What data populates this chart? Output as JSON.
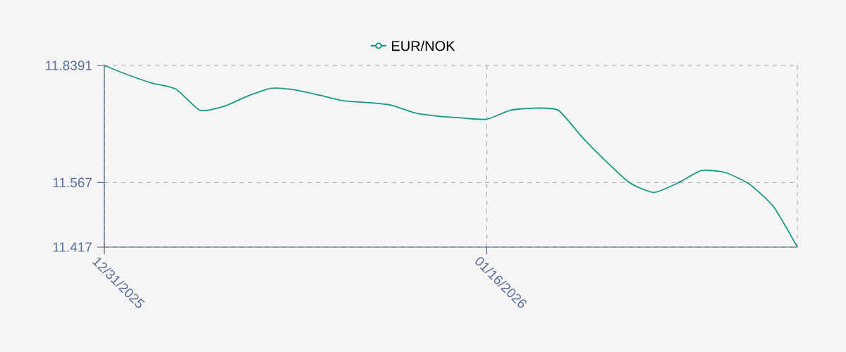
{
  "chart_data": {
    "type": "line",
    "x": [
      "2025-12-31",
      "2026-01-01",
      "2026-01-02",
      "2026-01-03",
      "2026-01-04",
      "2026-01-05",
      "2026-01-06",
      "2026-01-07",
      "2026-01-08",
      "2026-01-09",
      "2026-01-10",
      "2026-01-11",
      "2026-01-12",
      "2026-01-13",
      "2026-01-14",
      "2026-01-15",
      "2026-01-16",
      "2026-01-17",
      "2026-01-18",
      "2026-01-19",
      "2026-01-20",
      "2026-01-21",
      "2026-01-22",
      "2026-01-23",
      "2026-01-24",
      "2026-01-25",
      "2026-01-26",
      "2026-01-27",
      "2026-01-28",
      "2026-01-29"
    ],
    "series": [
      {
        "name": "EUR/NOK",
        "color": "#1a9a85",
        "values": [
          11.8391,
          11.817,
          11.798,
          11.784,
          11.735,
          11.744,
          11.768,
          11.786,
          11.782,
          11.77,
          11.757,
          11.753,
          11.747,
          11.729,
          11.721,
          11.717,
          11.714,
          11.735,
          11.74,
          11.735,
          11.672,
          11.616,
          11.566,
          11.544,
          11.566,
          11.595,
          11.59,
          11.563,
          11.511,
          11.417
        ]
      }
    ],
    "xlim": [
      "2025-12-31",
      "2026-01-29"
    ],
    "xticks": [
      {
        "value": "2025-12-31",
        "label": "12/31/2025"
      },
      {
        "value": "2026-01-16",
        "label": "01/16/2026"
      }
    ],
    "ylim": [
      11.417,
      11.8391
    ],
    "yticks": [
      11.417,
      11.567,
      11.8391
    ],
    "grid": true,
    "legend": "top",
    "marker": "none",
    "line_style": "solid"
  }
}
